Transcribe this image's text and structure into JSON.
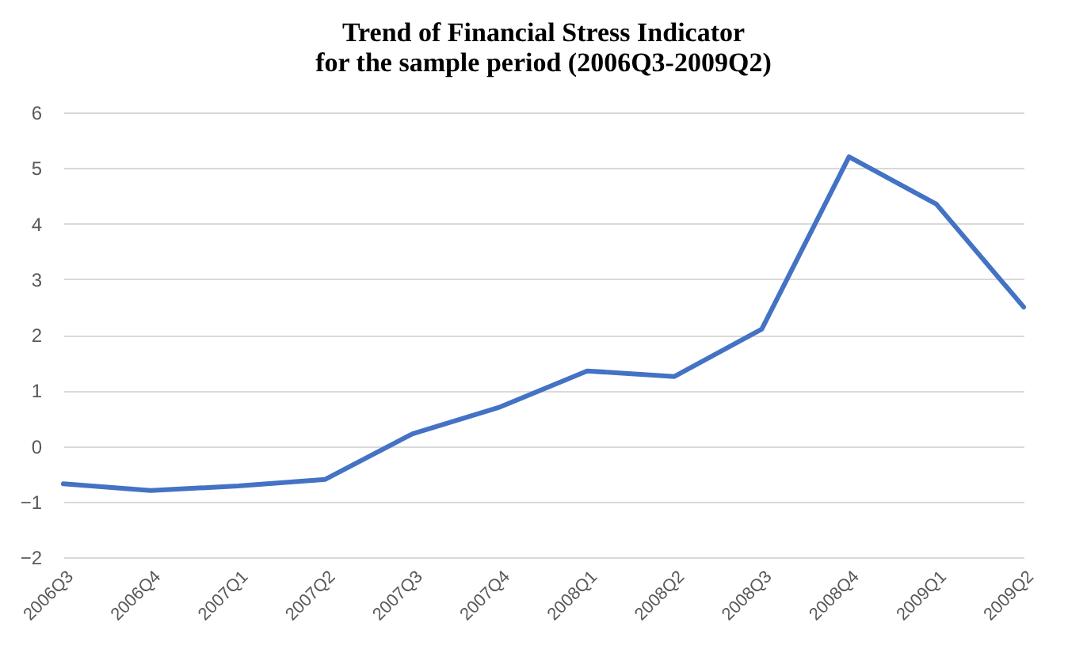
{
  "chart_data": {
    "type": "line",
    "title": "Trend of Financial Stress Indicator for the sample period (2006Q3-2009Q2)",
    "categories": [
      "2006Q3",
      "2006Q4",
      "2007Q1",
      "2007Q2",
      "2007Q3",
      "2007Q4",
      "2008Q1",
      "2008Q2",
      "2008Q3",
      "2008Q4",
      "2009Q1",
      "2009Q2"
    ],
    "series": [
      {
        "color": "#4472c4",
        "values": [
          -0.68,
          -0.8,
          -0.72,
          -0.6,
          0.22,
          0.7,
          1.35,
          1.25,
          2.1,
          5.2,
          4.35,
          2.5
        ]
      }
    ],
    "ylim": [
      -2,
      6
    ],
    "yticks": [
      -2,
      -1,
      0,
      1,
      2,
      3,
      4,
      5,
      6
    ],
    "grid": "y",
    "legend": false,
    "marker": "none",
    "line_style": "solid"
  }
}
